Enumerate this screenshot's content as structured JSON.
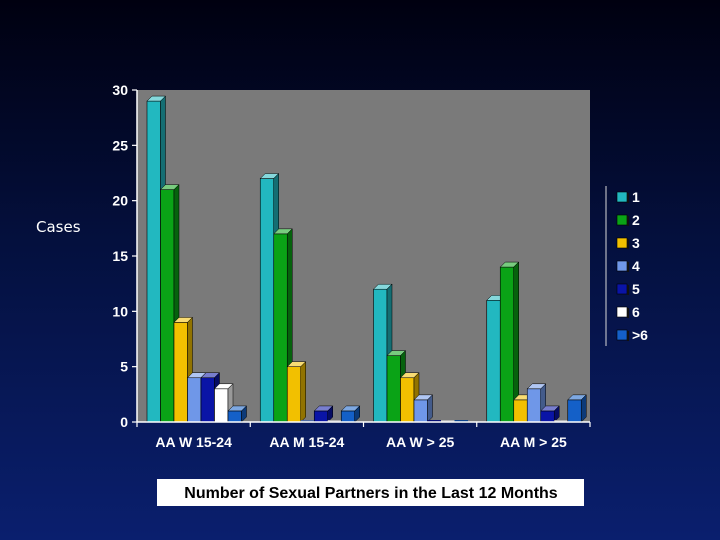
{
  "chart_data": {
    "type": "bar",
    "title": "",
    "xlabel": "Number of Sexual Partners in the Last 12 Months",
    "ylabel": "Cases",
    "ylim": [
      0,
      30
    ],
    "yticks": [
      0,
      5,
      10,
      15,
      20,
      25,
      30
    ],
    "grid": false,
    "legend_position": "right",
    "categories": [
      "AA W 15-24",
      "AA M 15-24",
      "AA W > 25",
      "AA M > 25"
    ],
    "series": [
      {
        "name": "1",
        "color": "#22b8c0",
        "values": [
          29,
          22,
          12,
          11
        ]
      },
      {
        "name": "2",
        "color": "#0aa316",
        "values": [
          21,
          17,
          6,
          14
        ]
      },
      {
        "name": "3",
        "color": "#f2c000",
        "values": [
          9,
          5,
          4,
          2
        ]
      },
      {
        "name": "4",
        "color": "#6f97e8",
        "values": [
          4,
          0,
          2,
          3
        ]
      },
      {
        "name": "5",
        "color": "#0a14a6",
        "values": [
          4,
          1,
          0,
          1
        ]
      },
      {
        "name": "6",
        "color": "#ffffff",
        "values": [
          3,
          0,
          0,
          0
        ]
      },
      {
        "name": ">6",
        "color": "#1460c8",
        "values": [
          1,
          1,
          0,
          2
        ]
      }
    ]
  }
}
